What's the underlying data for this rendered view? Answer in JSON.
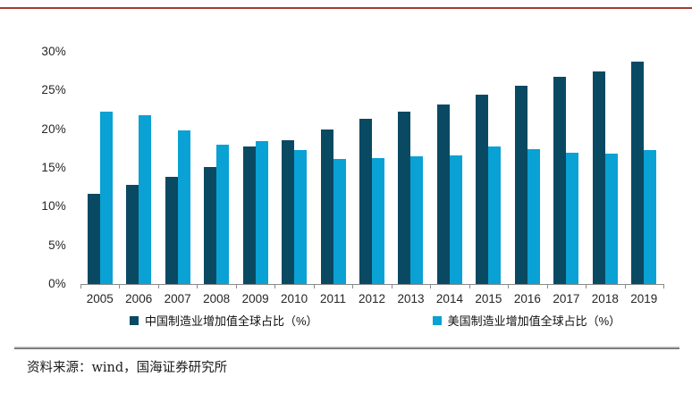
{
  "page": {
    "top_rule_color": "#9e3c38",
    "source": {
      "label": "资料来源：",
      "text": "wind，国海证券研究所"
    }
  },
  "chart_data": {
    "type": "bar",
    "title": "",
    "categories": [
      "2005",
      "2006",
      "2007",
      "2008",
      "2009",
      "2010",
      "2011",
      "2012",
      "2013",
      "2014",
      "2015",
      "2016",
      "2017",
      "2018",
      "2019"
    ],
    "series": [
      {
        "key": "china",
        "name": "中国制造业增加值全球占比（%）",
        "color": "#0a4962",
        "values": [
          11.7,
          12.8,
          13.9,
          15.1,
          17.8,
          18.6,
          20.0,
          21.3,
          22.3,
          23.2,
          24.5,
          25.6,
          26.8,
          27.5,
          28.7
        ]
      },
      {
        "key": "us",
        "name": "美国制造业增加值全球占比（%）",
        "color": "#0aa1d4",
        "values": [
          22.3,
          21.8,
          19.8,
          18.0,
          18.5,
          17.3,
          16.2,
          16.3,
          16.5,
          16.6,
          17.8,
          17.4,
          17.0,
          16.9,
          17.3
        ]
      }
    ],
    "ylim": [
      0,
      30
    ],
    "ytick_step": 5,
    "ytick_labels": [
      "30%",
      "25%",
      "20%",
      "15%",
      "10%",
      "5%",
      "0%"
    ],
    "grid": false,
    "legend_position": "bottom",
    "axis_color": "#8a8a8a",
    "label_color": "#262626"
  }
}
